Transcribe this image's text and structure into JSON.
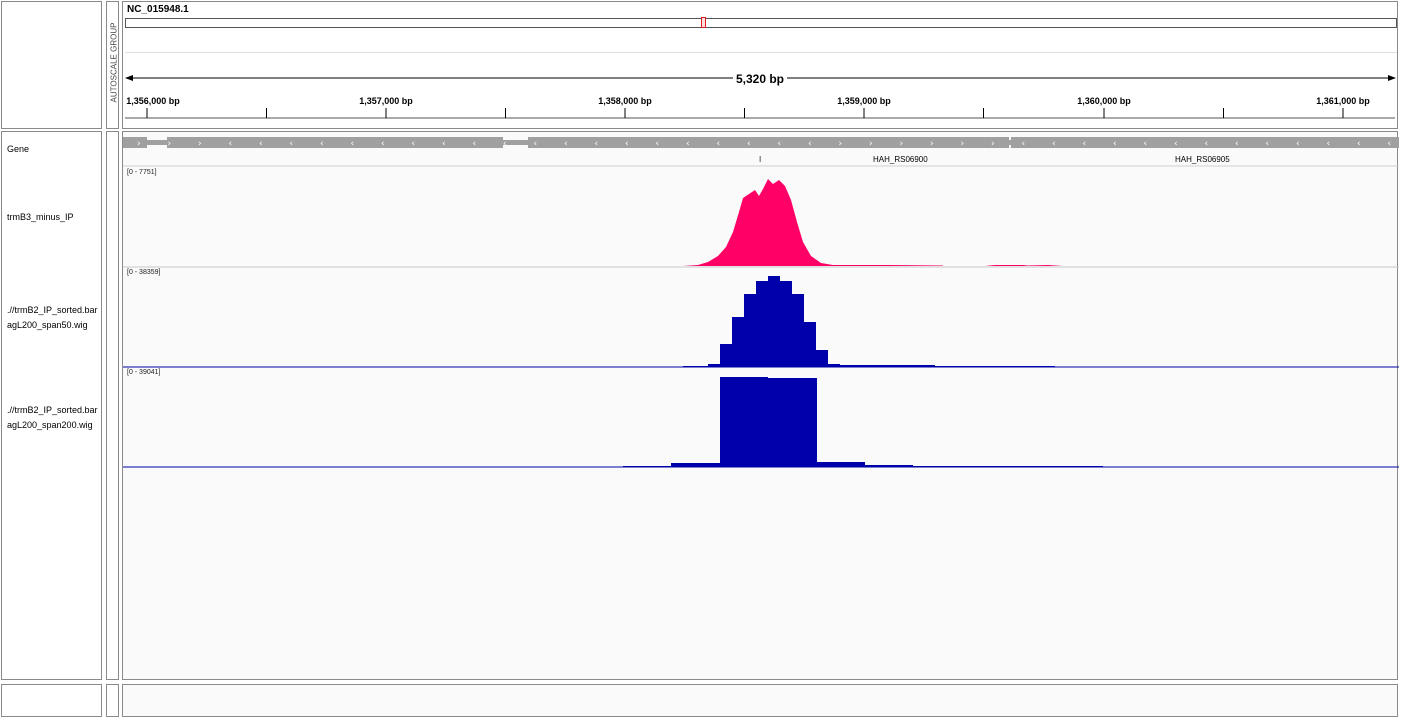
{
  "header": {
    "chromosome": "NC_015948.1",
    "span_label": "5,320 bp",
    "autoscale_label": "AUTOSCALE GROUP",
    "ticks": [
      "1,356,000 bp",
      "1,357,000 bp",
      "1,358,000 bp",
      "1,359,000 bp",
      "1,360,000 bp",
      "1,361,000 bp"
    ]
  },
  "tracks": [
    {
      "name_lines": [
        "Gene"
      ],
      "type": "gene"
    },
    {
      "name_lines": [
        "trmB3_minus_IP"
      ],
      "range": "[0 - 7751]",
      "color": "#ff0066"
    },
    {
      "name_lines": [
        ".//trmB2_IP_sorted.bar",
        "agL200_span50.wig"
      ],
      "range": "[0 - 38359]",
      "color": "#0000aa"
    },
    {
      "name_lines": [
        ".//trmB2_IP_sorted.bar",
        "agL200_span200.wig"
      ],
      "range": "[0 - 39041]",
      "color": "#0000aa"
    }
  ],
  "genes": {
    "labels": [
      "HAH_RS06900",
      "HAH_RS06905"
    ],
    "small_mark": "I"
  },
  "colors": {
    "gene_fill": "#a0a0a0",
    "ideogram_marker": "#e02020",
    "plus_track": "#ff0066",
    "minus_track": "#0000aa"
  }
}
